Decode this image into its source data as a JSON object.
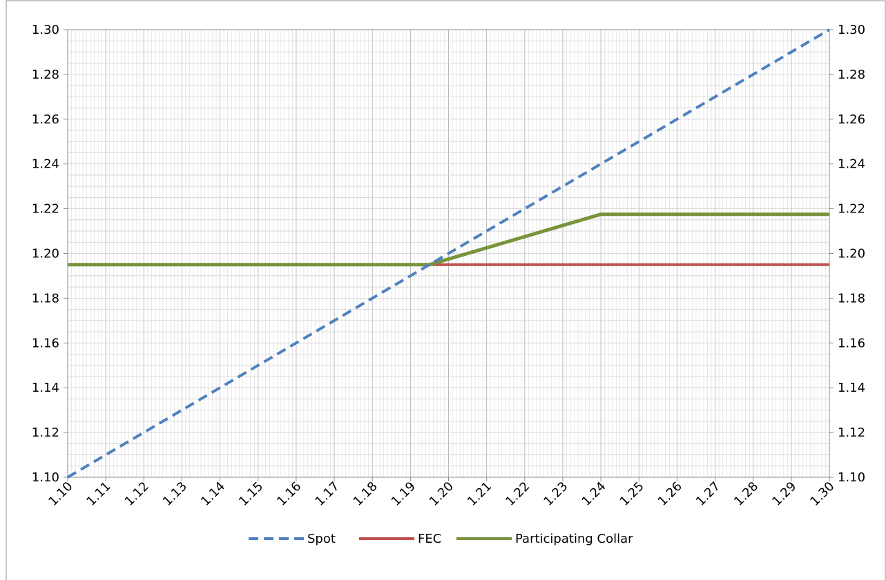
{
  "chart_data": {
    "type": "line",
    "title": "",
    "xlabel": "",
    "ylabel": "",
    "xlim": [
      1.1,
      1.3
    ],
    "ylim": [
      1.1,
      1.3
    ],
    "x_ticks": [
      "1.10",
      "1.11",
      "1.12",
      "1.13",
      "1.14",
      "1.15",
      "1.16",
      "1.17",
      "1.18",
      "1.19",
      "1.20",
      "1.21",
      "1.22",
      "1.23",
      "1.24",
      "1.25",
      "1.26",
      "1.27",
      "1.28",
      "1.29",
      "1.30"
    ],
    "y_ticks": [
      "1.10",
      "1.12",
      "1.14",
      "1.16",
      "1.18",
      "1.20",
      "1.22",
      "1.24",
      "1.26",
      "1.28",
      "1.30"
    ],
    "grid": true,
    "legend_position": "bottom",
    "series": [
      {
        "name": "Spot",
        "color": "#4f81bd",
        "style": "dashed",
        "points": [
          [
            1.1,
            1.1
          ],
          [
            1.3,
            1.3
          ]
        ]
      },
      {
        "name": "FEC",
        "color": "#c0504d",
        "style": "solid",
        "points": [
          [
            1.1,
            1.195
          ],
          [
            1.3,
            1.195
          ]
        ]
      },
      {
        "name": "Participating Collar",
        "color": "#77933c",
        "style": "solid",
        "points": [
          [
            1.1,
            1.195
          ],
          [
            1.195,
            1.195
          ],
          [
            1.24,
            1.2175
          ],
          [
            1.3,
            1.2175
          ]
        ]
      }
    ]
  }
}
